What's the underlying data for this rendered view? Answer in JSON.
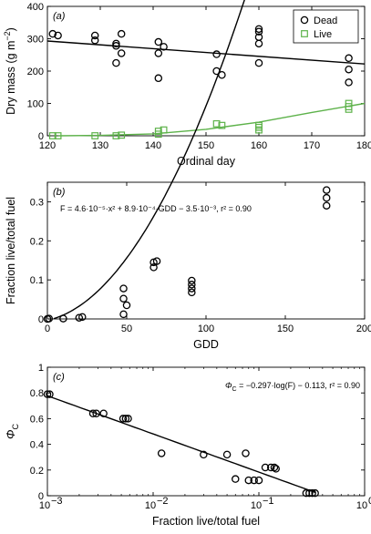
{
  "chart_data": [
    {
      "type": "scatter",
      "panel": "(a)",
      "xlabel": "Ordinal day",
      "ylabel": "Dry mass (g m",
      "ylabel_sup": "−2",
      "ylabel_close": ")",
      "xlim": [
        120,
        180
      ],
      "ylim": [
        0,
        400
      ],
      "xticks": [
        120,
        130,
        140,
        150,
        160,
        170,
        180
      ],
      "yticks": [
        0,
        100,
        200,
        300,
        400
      ],
      "xtick_labels": [
        "120",
        "130",
        "140",
        "150",
        "160",
        "170",
        "180"
      ],
      "ytick_labels": [
        "0",
        "100",
        "200",
        "300",
        "400"
      ],
      "legend_position": "top-right",
      "series": [
        {
          "name": "Dead",
          "marker": "circle",
          "color": "#000000",
          "points": [
            [
              121,
              315
            ],
            [
              122,
              310
            ],
            [
              129,
              310
            ],
            [
              129,
              295
            ],
            [
              133,
              285
            ],
            [
              133,
              278
            ],
            [
              133,
              225
            ],
            [
              134,
              315
            ],
            [
              134,
              255
            ],
            [
              141,
              290
            ],
            [
              141,
              255
            ],
            [
              141,
              178
            ],
            [
              142,
              275
            ],
            [
              152,
              252
            ],
            [
              152,
              200
            ],
            [
              153,
              188
            ],
            [
              160,
              330
            ],
            [
              160,
              322
            ],
            [
              160,
              305
            ],
            [
              160,
              285
            ],
            [
              160,
              225
            ],
            [
              177,
              240
            ],
            [
              177,
              205
            ],
            [
              177,
              165
            ]
          ],
          "fit": {
            "kind": "linear",
            "x0": 120,
            "y0": 293,
            "x1": 180,
            "y1": 222
          }
        },
        {
          "name": "Live",
          "marker": "square",
          "color": "#5db24a",
          "points": [
            [
              121,
              0
            ],
            [
              122,
              0
            ],
            [
              129,
              0
            ],
            [
              133,
              0
            ],
            [
              134,
              2
            ],
            [
              141,
              5
            ],
            [
              141,
              14
            ],
            [
              142,
              18
            ],
            [
              152,
              37
            ],
            [
              153,
              32
            ],
            [
              160,
              18
            ],
            [
              160,
              26
            ],
            [
              160,
              32
            ],
            [
              177,
              82
            ],
            [
              177,
              90
            ],
            [
              177,
              100
            ]
          ],
          "fit": {
            "kind": "curve",
            "points": [
              [
                122,
                0
              ],
              [
                130,
                1
              ],
              [
                140,
                6
              ],
              [
                150,
                20
              ],
              [
                160,
                42
              ],
              [
                170,
                72
              ],
              [
                180,
                100
              ]
            ]
          }
        }
      ]
    },
    {
      "type": "scatter",
      "panel": "(b)",
      "xlabel": "GDD",
      "ylabel": "Fraction live/total fuel",
      "xlim": [
        0,
        200
      ],
      "ylim": [
        0,
        0.35
      ],
      "xticks": [
        0,
        50,
        100,
        150,
        200
      ],
      "yticks": [
        0,
        0.1,
        0.2,
        0.3
      ],
      "xtick_labels": [
        "0",
        "50",
        "100",
        "150",
        "200"
      ],
      "ytick_labels": [
        "0",
        "0.1",
        "0.2",
        "0.3"
      ],
      "equation": "F = 4.6·10⁻⁵·x² + 8.9·10⁻⁴·GDD − 3.5·10⁻³, r² = 0.90",
      "series": [
        {
          "marker": "circle",
          "color": "#000000",
          "points": [
            [
              0,
              0
            ],
            [
              1,
              0.001
            ],
            [
              10,
              0.001
            ],
            [
              20,
              0.003
            ],
            [
              22,
              0.005
            ],
            [
              48,
              0.078
            ],
            [
              48,
              0.052
            ],
            [
              48,
              0.012
            ],
            [
              50,
              0.035
            ],
            [
              67,
              0.145
            ],
            [
              67,
              0.132
            ],
            [
              69,
              0.148
            ],
            [
              91,
              0.098
            ],
            [
              91,
              0.088
            ],
            [
              91,
              0.078
            ],
            [
              91,
              0.068
            ],
            [
              176,
              0.33
            ],
            [
              176,
              0.31
            ],
            [
              176,
              0.29
            ]
          ],
          "fit": {
            "kind": "quadratic",
            "a": 4.6e-05,
            "b": 0.00089,
            "c": -0.0035,
            "x_from": 4,
            "x_to": 182
          }
        }
      ]
    },
    {
      "type": "scatter",
      "panel": "(c)",
      "xscale": "log",
      "xlabel": "Fraction live/total fuel",
      "ylabel": "Φ",
      "ylabel_sub": "C",
      "xlim": [
        0.001,
        1
      ],
      "ylim": [
        0,
        1
      ],
      "xticks": [
        0.001,
        0.01,
        0.1,
        1
      ],
      "yticks": [
        0,
        0.2,
        0.4,
        0.6,
        0.8,
        1
      ],
      "xtick_labels": [
        "10",
        "10",
        "10",
        "10"
      ],
      "xtick_exponents": [
        "−3",
        "−2",
        "−1",
        "0"
      ],
      "ytick_labels": [
        "0",
        "0.2",
        "0.4",
        "0.6",
        "0.8",
        "1"
      ],
      "equation": "Φ",
      "equation_sub": "C",
      "equation_rest": " = −0.297·log(F) − 0.113, r² = 0.90",
      "series": [
        {
          "marker": "circle",
          "color": "#000000",
          "points": [
            [
              0.001,
              0.79
            ],
            [
              0.00105,
              0.79
            ],
            [
              0.0027,
              0.64
            ],
            [
              0.0029,
              0.64
            ],
            [
              0.0034,
              0.64
            ],
            [
              0.0052,
              0.6
            ],
            [
              0.0055,
              0.6
            ],
            [
              0.0058,
              0.6
            ],
            [
              0.012,
              0.33
            ],
            [
              0.03,
              0.32
            ],
            [
              0.05,
              0.32
            ],
            [
              0.06,
              0.13
            ],
            [
              0.075,
              0.33
            ],
            [
              0.08,
              0.12
            ],
            [
              0.09,
              0.12
            ],
            [
              0.1,
              0.12
            ],
            [
              0.115,
              0.22
            ],
            [
              0.13,
              0.22
            ],
            [
              0.14,
              0.22
            ],
            [
              0.145,
              0.21
            ],
            [
              0.28,
              0.02
            ],
            [
              0.3,
              0.02
            ],
            [
              0.32,
              0.02
            ],
            [
              0.34,
              0.02
            ]
          ],
          "fit": {
            "kind": "log",
            "slope": -0.297,
            "intercept": -0.113,
            "x_from": 0.001,
            "x_to": 0.34
          }
        }
      ]
    }
  ]
}
